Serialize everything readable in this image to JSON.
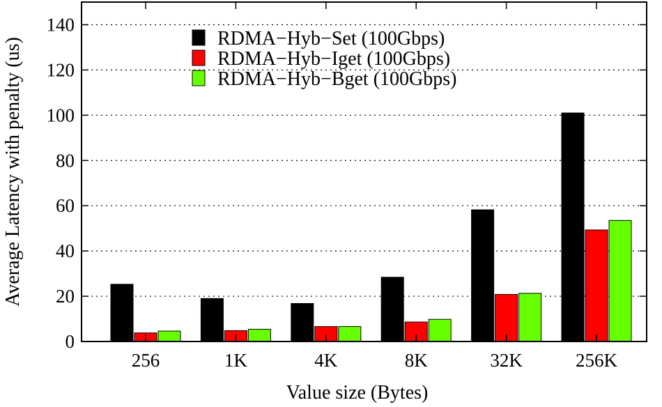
{
  "chart_data": {
    "type": "bar",
    "categories": [
      "256",
      "1K",
      "4K",
      "8K",
      "32K",
      "256K"
    ],
    "series": [
      {
        "name": "RDMA−Hyb−Set (100Gbps)",
        "color": "#000000",
        "values": [
          25.3,
          19.0,
          16.8,
          28.4,
          58.2,
          101.0
        ]
      },
      {
        "name": "RDMA−Hyb−Iget (100Gbps)",
        "color": "#ff0000",
        "values": [
          3.8,
          4.8,
          6.6,
          8.6,
          20.8,
          49.3
        ]
      },
      {
        "name": "RDMA−Hyb−Bget (100Gbps)",
        "color": "#66ff00",
        "values": [
          4.6,
          5.4,
          6.6,
          9.8,
          21.3,
          53.5
        ]
      }
    ],
    "xlabel": "Value size (Bytes)",
    "ylabel": "Average Latency with penalty (us)",
    "ylim": [
      0,
      150
    ],
    "yticks": [
      0,
      20,
      40,
      60,
      80,
      100,
      120,
      140
    ],
    "grid": "horizontal dotted",
    "legend": "top-center"
  }
}
